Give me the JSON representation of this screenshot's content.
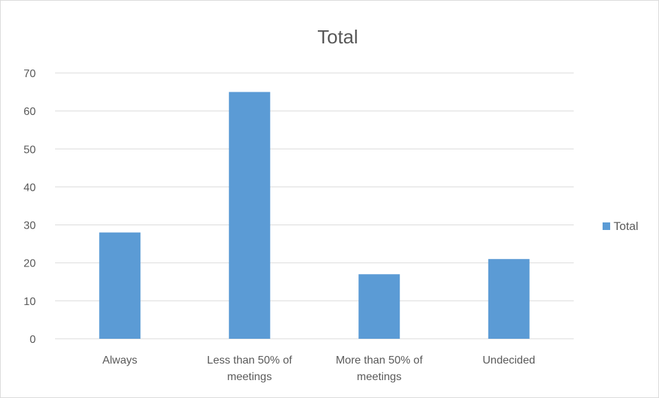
{
  "chart_data": {
    "type": "bar",
    "title": "Total",
    "xlabel": "",
    "ylabel": "",
    "categories": [
      [
        "Always"
      ],
      [
        "Less than 50% of",
        "meetings"
      ],
      [
        "More than 50% of",
        "meetings"
      ],
      [
        "Undecided"
      ]
    ],
    "series": [
      {
        "name": "Total",
        "values": [
          28,
          65,
          17,
          21
        ],
        "color": "#5b9bd5"
      }
    ],
    "ylim": [
      0,
      70
    ],
    "yticks": [
      0,
      10,
      20,
      30,
      40,
      50,
      60,
      70
    ],
    "grid": true,
    "legend_position": "right"
  },
  "colors": {
    "gridline": "#d9d9d9",
    "axis": "#d9d9d9",
    "text": "#595959",
    "frame_border": "#d9d9d9"
  }
}
